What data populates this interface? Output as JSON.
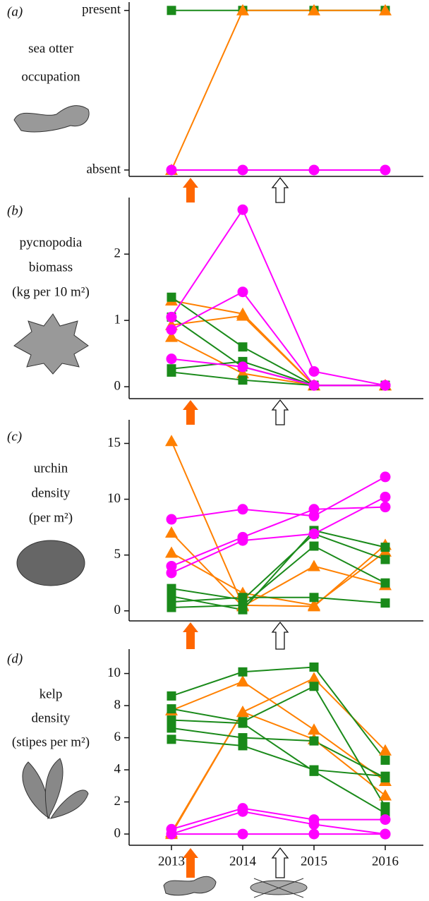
{
  "chart_data": [
    {
      "type": "line",
      "panel_label": "(a)",
      "ylabel": [
        "sea otter",
        "occupation"
      ],
      "ylim": [
        -0.04,
        1.03
      ],
      "yticks": [
        {
          "value": 0,
          "label": "absent"
        },
        {
          "value": 1,
          "label": "present"
        }
      ],
      "series": [
        {
          "color": "#1a8a1a",
          "marker": "square",
          "values": [
            1,
            1,
            1,
            1
          ]
        },
        {
          "color": "#ff8000",
          "marker": "triangle",
          "values": [
            0,
            1,
            1,
            1
          ]
        },
        {
          "color": "#ff00ff",
          "marker": "circle",
          "values": [
            0,
            0,
            0,
            0
          ]
        }
      ]
    },
    {
      "type": "line",
      "panel_label": "(b)",
      "ylabel": [
        "pycnopodia",
        "biomass",
        "(kg per 10 m²)"
      ],
      "ylim": [
        -0.18,
        2.8
      ],
      "yticks": [
        0,
        1,
        2
      ],
      "series": [
        {
          "color": "#ff8000",
          "marker": "triangle",
          "values": [
            1.3,
            1.1,
            0.02,
            0.02
          ]
        },
        {
          "color": "#ff8000",
          "marker": "triangle",
          "values": [
            0.93,
            1.07,
            0.02,
            0.02
          ]
        },
        {
          "color": "#ff8000",
          "marker": "triangle",
          "values": [
            0.75,
            0.2,
            0.02,
            0.02
          ]
        },
        {
          "color": "#1a8a1a",
          "marker": "square",
          "values": [
            1.35,
            0.6,
            0.02,
            0.02
          ]
        },
        {
          "color": "#1a8a1a",
          "marker": "square",
          "values": [
            1.05,
            0.3,
            0.02,
            0.02
          ]
        },
        {
          "color": "#1a8a1a",
          "marker": "square",
          "values": [
            0.27,
            0.38,
            0.02,
            0.02
          ]
        },
        {
          "color": "#1a8a1a",
          "marker": "square",
          "values": [
            0.22,
            0.1,
            0.02,
            0.02
          ]
        },
        {
          "color": "#ff00ff",
          "marker": "circle",
          "values": [
            1.05,
            2.67,
            0.23,
            0.02
          ]
        },
        {
          "color": "#ff00ff",
          "marker": "circle",
          "values": [
            0.86,
            1.43,
            0.02,
            0.02
          ]
        },
        {
          "color": "#ff00ff",
          "marker": "circle",
          "values": [
            0.42,
            0.3,
            0.02,
            0.02
          ]
        }
      ]
    },
    {
      "type": "line",
      "panel_label": "(c)",
      "ylabel": [
        "urchin",
        "density",
        "(per m²)"
      ],
      "ylim": [
        -0.9,
        16.8
      ],
      "yticks": [
        0,
        5,
        10,
        15
      ],
      "series": [
        {
          "color": "#ff8000",
          "marker": "triangle",
          "values": [
            15.2,
            0.5,
            0.4,
            5.9
          ]
        },
        {
          "color": "#ff8000",
          "marker": "triangle",
          "values": [
            7.0,
            0.4,
            4.0,
            2.3
          ]
        },
        {
          "color": "#ff8000",
          "marker": "triangle",
          "values": [
            5.2,
            1.6,
            0.5,
            5.3
          ]
        },
        {
          "color": "#1a8a1a",
          "marker": "square",
          "values": [
            1.3,
            0.1,
            7.2,
            5.7
          ]
        },
        {
          "color": "#1a8a1a",
          "marker": "square",
          "values": [
            2.0,
            1.0,
            6.9,
            4.6
          ]
        },
        {
          "color": "#1a8a1a",
          "marker": "square",
          "values": [
            0.3,
            0.5,
            5.8,
            2.5
          ]
        },
        {
          "color": "#1a8a1a",
          "marker": "square",
          "values": [
            0.8,
            1.2,
            1.2,
            0.7
          ]
        },
        {
          "color": "#ff00ff",
          "marker": "circle",
          "values": [
            8.2,
            9.1,
            8.5,
            12.0
          ]
        },
        {
          "color": "#ff00ff",
          "marker": "circle",
          "values": [
            4.0,
            6.6,
            9.1,
            9.3
          ]
        },
        {
          "color": "#ff00ff",
          "marker": "circle",
          "values": [
            3.4,
            6.3,
            6.9,
            10.2
          ]
        }
      ]
    },
    {
      "type": "line",
      "panel_label": "(d)",
      "ylabel": [
        "kelp",
        "density",
        "(stipes per m²)"
      ],
      "categories": [
        "2013",
        "2014",
        "2015",
        "2016"
      ],
      "ylim": [
        -0.7,
        11.3
      ],
      "yticks": [
        0,
        2,
        4,
        6,
        8,
        10
      ],
      "series": [
        {
          "color": "#ff8000",
          "marker": "triangle",
          "values": [
            7.7,
            9.5,
            6.5,
            3.3
          ]
        },
        {
          "color": "#ff8000",
          "marker": "triangle",
          "values": [
            0.1,
            7.6,
            9.7,
            5.2
          ]
        },
        {
          "color": "#ff8000",
          "marker": "triangle",
          "values": [
            0,
            7.6,
            5.9,
            2.4
          ]
        },
        {
          "color": "#1a8a1a",
          "marker": "square",
          "values": [
            8.6,
            10.1,
            10.4,
            4.6
          ]
        },
        {
          "color": "#1a8a1a",
          "marker": "square",
          "values": [
            7.8,
            7.0,
            9.2,
            1.7
          ]
        },
        {
          "color": "#1a8a1a",
          "marker": "square",
          "values": [
            6.6,
            6.0,
            5.8,
            3.5
          ]
        },
        {
          "color": "#1a8a1a",
          "marker": "square",
          "values": [
            5.9,
            5.5,
            4.0,
            3.6
          ]
        },
        {
          "color": "#1a8a1a",
          "marker": "square",
          "values": [
            7.1,
            6.9,
            3.9,
            1.3
          ]
        },
        {
          "color": "#ff00ff",
          "marker": "circle",
          "values": [
            0.3,
            1.6,
            0.9,
            0.9
          ]
        },
        {
          "color": "#ff00ff",
          "marker": "circle",
          "values": [
            0,
            1.4,
            0.6,
            0
          ]
        },
        {
          "color": "#ff00ff",
          "marker": "circle",
          "values": [
            0,
            0,
            0,
            0
          ]
        }
      ]
    }
  ]
}
